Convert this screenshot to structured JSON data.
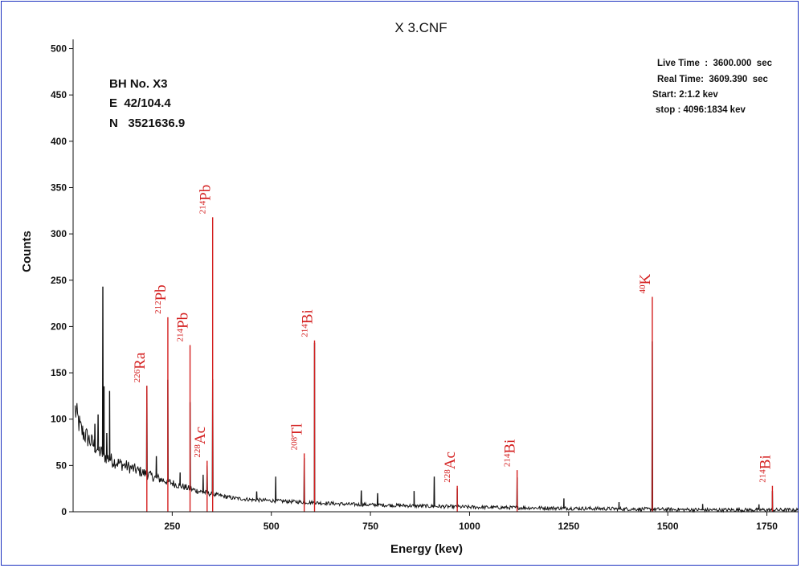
{
  "chart_data": {
    "type": "line",
    "title": "X 3.CNF",
    "xlabel": "Energy (kev)",
    "ylabel": "Counts",
    "xlim": [
      0,
      1830
    ],
    "ylim": [
      0,
      510
    ],
    "x_ticks": [
      250,
      500,
      750,
      1000,
      1250,
      1500,
      1750
    ],
    "y_ticks": [
      0,
      50,
      100,
      150,
      200,
      250,
      300,
      350,
      400,
      450,
      500
    ],
    "grid": false,
    "legend": "none",
    "info_block": [
      "BH No. X3",
      "E  42/104.4",
      "N   3521636.9"
    ],
    "meta_block": [
      "Live Time  :  3600.000  sec",
      "Real Time:  3609.390  sec",
      "Start: 2:1.2 kev",
      "stop : 4096:1834 kev"
    ],
    "colors": {
      "spectrum": "#111111",
      "annotation": "#d42020",
      "frame": "#1a2fbf"
    },
    "baseline": [
      [
        5,
        110
      ],
      [
        20,
        88
      ],
      [
        40,
        78
      ],
      [
        60,
        68
      ],
      [
        80,
        60
      ],
      [
        100,
        55
      ],
      [
        130,
        50
      ],
      [
        160,
        45
      ],
      [
        200,
        38
      ],
      [
        250,
        31
      ],
      [
        300,
        24
      ],
      [
        350,
        19
      ],
      [
        400,
        15
      ],
      [
        450,
        13
      ],
      [
        500,
        12
      ],
      [
        600,
        10
      ],
      [
        700,
        8
      ],
      [
        800,
        7
      ],
      [
        900,
        6
      ],
      [
        1000,
        5
      ],
      [
        1200,
        4
      ],
      [
        1400,
        3
      ],
      [
        1600,
        2
      ],
      [
        1830,
        2
      ]
    ],
    "spectrum_peaks": [
      {
        "x": 55,
        "y": 95
      },
      {
        "x": 63,
        "y": 105
      },
      {
        "x": 75,
        "y": 243
      },
      {
        "x": 78,
        "y": 135
      },
      {
        "x": 85,
        "y": 85
      },
      {
        "x": 92,
        "y": 130
      },
      {
        "x": 186,
        "y": 136
      },
      {
        "x": 210,
        "y": 60
      },
      {
        "x": 239,
        "y": 142
      },
      {
        "x": 270,
        "y": 42
      },
      {
        "x": 295,
        "y": 118
      },
      {
        "x": 328,
        "y": 40
      },
      {
        "x": 338,
        "y": 50
      },
      {
        "x": 352,
        "y": 143
      },
      {
        "x": 463,
        "y": 22
      },
      {
        "x": 511,
        "y": 38
      },
      {
        "x": 583,
        "y": 58
      },
      {
        "x": 609,
        "y": 182
      },
      {
        "x": 727,
        "y": 23
      },
      {
        "x": 768,
        "y": 20
      },
      {
        "x": 860,
        "y": 22
      },
      {
        "x": 911,
        "y": 38
      },
      {
        "x": 969,
        "y": 25
      },
      {
        "x": 1120,
        "y": 37
      },
      {
        "x": 1238,
        "y": 14
      },
      {
        "x": 1377,
        "y": 10
      },
      {
        "x": 1461,
        "y": 184
      },
      {
        "x": 1588,
        "y": 8
      },
      {
        "x": 1730,
        "y": 8
      },
      {
        "x": 1764,
        "y": 22
      }
    ],
    "annotations": [
      {
        "sup": "226",
        "text": "Ra",
        "x": 186,
        "y_top": 136
      },
      {
        "sup": "212",
        "text": "Pb",
        "x": 239,
        "y_top": 210
      },
      {
        "sup": "214",
        "text": "Pb",
        "x": 295,
        "y_top": 180
      },
      {
        "sup": "228",
        "text": "Ac",
        "x": 338,
        "y_top": 55
      },
      {
        "sup": "214",
        "text": "Pb",
        "x": 352,
        "y_top": 318
      },
      {
        "sup": "208",
        "text": "Tl",
        "x": 583,
        "y_top": 63
      },
      {
        "sup": "214",
        "text": "Bi",
        "x": 609,
        "y_top": 185
      },
      {
        "sup": "228",
        "text": "Ac",
        "x": 969,
        "y_top": 28
      },
      {
        "sup": "214",
        "text": "Bi",
        "x": 1120,
        "y_top": 45
      },
      {
        "sup": "40",
        "text": "K",
        "x": 1461,
        "y_top": 232
      },
      {
        "sup": "214",
        "text": "Bi",
        "x": 1764,
        "y_top": 28
      }
    ]
  }
}
